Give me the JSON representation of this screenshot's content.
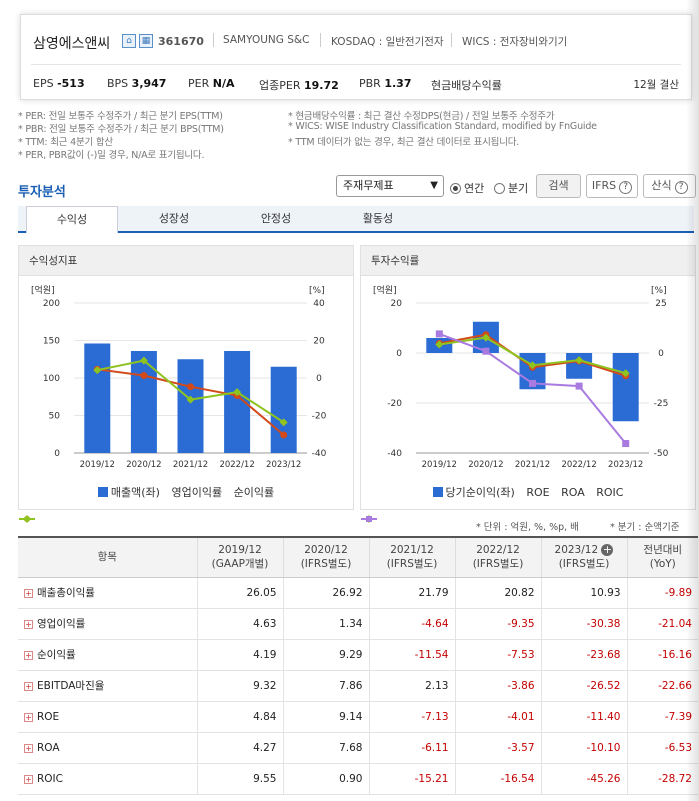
{
  "company": {
    "name": "삼영에스앤씨",
    "code": "361670",
    "name_en": "SAMYOUNG S&C",
    "market": "KOSDAQ : 일반전기전자",
    "wics": "WICS : 전자장비와기기",
    "icons": [
      "home-icon",
      "building-icon"
    ]
  },
  "kpis": [
    {
      "label": "EPS",
      "value": "-513"
    },
    {
      "label": "BPS",
      "value": "3,947"
    },
    {
      "label": "PER",
      "value": "N/A"
    },
    {
      "label": "업종PER",
      "value": "19.72"
    },
    {
      "label": "PBR",
      "value": "1.37"
    },
    {
      "label": "현금배당수익률",
      "value": ""
    }
  ],
  "settlement": "12월 결산",
  "notes_left": [
    "* PER: 전일 보통주 수정주가 / 최근 분기 EPS(TTM)",
    "* PBR: 전일 보통주 수정주가 / 최근 분기 BPS(TTM)",
    "* TTM: 최근 4분기 합산",
    "* PER, PBR값이 (-)일 경우, N/A로 표기됩니다."
  ],
  "notes_right": [
    "* 현금배당수익률 : 최근 결산 수정DPS(현금) / 전일 보통주 수정주가",
    "* WICS: WISE Industry Classification Standard, modified by FnGuide",
    "* TTM 데이터가 없는 경우, 최근 결산 데이터로 표시됩니다."
  ],
  "section_title": "투자분석",
  "controls": {
    "select_value": "주재무제표",
    "radio_annual": "연간",
    "radio_quarter": "분기",
    "search": "검색",
    "ifrs": "IFRS",
    "formula": "산식"
  },
  "tabs": [
    "수익성",
    "성장성",
    "안정성",
    "활동성"
  ],
  "chart_data": [
    {
      "type": "bar",
      "title": "수익성지표",
      "categories": [
        "2019/12",
        "2020/12",
        "2021/12",
        "2022/12",
        "2023/12"
      ],
      "ylabel": "[억원]",
      "y2label": "[%]",
      "ylim": [
        0,
        200
      ],
      "yticks": [
        0,
        50,
        100,
        150,
        200
      ],
      "y2lim": [
        -40,
        40
      ],
      "y2ticks": [
        -40,
        -20,
        0,
        20,
        40
      ],
      "series": [
        {
          "name": "매출액(좌)",
          "kind": "bar",
          "axis": "left",
          "color": "#2a6bd4",
          "values": [
            146,
            136,
            125,
            136,
            115
          ]
        },
        {
          "name": "영업이익률",
          "kind": "line",
          "axis": "right",
          "color": "#d24a1a",
          "values": [
            4.63,
            1.34,
            -4.64,
            -9.35,
            -30.38
          ]
        },
        {
          "name": "순이익률",
          "kind": "line",
          "axis": "right",
          "color": "#8fc31f",
          "values": [
            4.19,
            9.29,
            -11.54,
            -7.53,
            -23.68
          ]
        }
      ]
    },
    {
      "type": "bar",
      "title": "투자수익률",
      "categories": [
        "2019/12",
        "2020/12",
        "2021/12",
        "2022/12",
        "2023/12"
      ],
      "ylabel": "[억원]",
      "y2label": "[%]",
      "ylim": [
        -40,
        20
      ],
      "yticks": [
        -40,
        -20,
        0,
        20
      ],
      "y2lim": [
        -50,
        25
      ],
      "y2ticks": [
        -50,
        -25,
        0,
        25
      ],
      "series": [
        {
          "name": "당기순이익(좌)",
          "kind": "bar",
          "axis": "left",
          "color": "#2a6bd4",
          "values": [
            6,
            12.5,
            -14.5,
            -10.3,
            -27.3
          ]
        },
        {
          "name": "ROE",
          "kind": "line",
          "axis": "right",
          "color": "#d24a1a",
          "values": [
            4.84,
            9.14,
            -7.13,
            -4.01,
            -11.4
          ]
        },
        {
          "name": "ROA",
          "kind": "line",
          "axis": "right",
          "color": "#8fc31f",
          "values": [
            4.27,
            7.68,
            -6.11,
            -3.57,
            -10.1
          ]
        },
        {
          "name": "ROIC",
          "kind": "line",
          "axis": "right",
          "color": "#a97be0",
          "values": [
            9.55,
            0.9,
            -15.21,
            -16.54,
            -45.26
          ]
        }
      ]
    }
  ],
  "unit_note": "* 단위 : 억원, %, %p, 배",
  "quarter_note": "* 분기 : 순액기준",
  "table": {
    "headers": [
      {
        "l1": "항목",
        "l2": ""
      },
      {
        "l1": "2019/12",
        "l2": "(GAAP개별)"
      },
      {
        "l1": "2020/12",
        "l2": "(IFRS별도)"
      },
      {
        "l1": "2021/12",
        "l2": "(IFRS별도)"
      },
      {
        "l1": "2022/12",
        "l2": "(IFRS별도)"
      },
      {
        "l1": "2023/12",
        "l2": "(IFRS별도)"
      },
      {
        "l1": "전년대비",
        "l2": "(YoY)"
      }
    ],
    "rows": [
      {
        "label": "매출총이익률",
        "cells": [
          "26.05",
          "26.92",
          "21.79",
          "20.82",
          "10.93",
          "-9.89"
        ]
      },
      {
        "label": "영업이익률",
        "cells": [
          "4.63",
          "1.34",
          "-4.64",
          "-9.35",
          "-30.38",
          "-21.04"
        ]
      },
      {
        "label": "순이익률",
        "cells": [
          "4.19",
          "9.29",
          "-11.54",
          "-7.53",
          "-23.68",
          "-16.16"
        ]
      },
      {
        "label": "EBITDA마진율",
        "cells": [
          "9.32",
          "7.86",
          "2.13",
          "-3.86",
          "-26.52",
          "-22.66"
        ]
      },
      {
        "label": "ROE",
        "cells": [
          "4.84",
          "9.14",
          "-7.13",
          "-4.01",
          "-11.40",
          "-7.39"
        ]
      },
      {
        "label": "ROA",
        "cells": [
          "4.27",
          "7.68",
          "-6.11",
          "-3.57",
          "-10.10",
          "-6.53"
        ]
      },
      {
        "label": "ROIC",
        "cells": [
          "9.55",
          "0.90",
          "-15.21",
          "-16.54",
          "-45.26",
          "-28.72"
        ]
      }
    ]
  }
}
